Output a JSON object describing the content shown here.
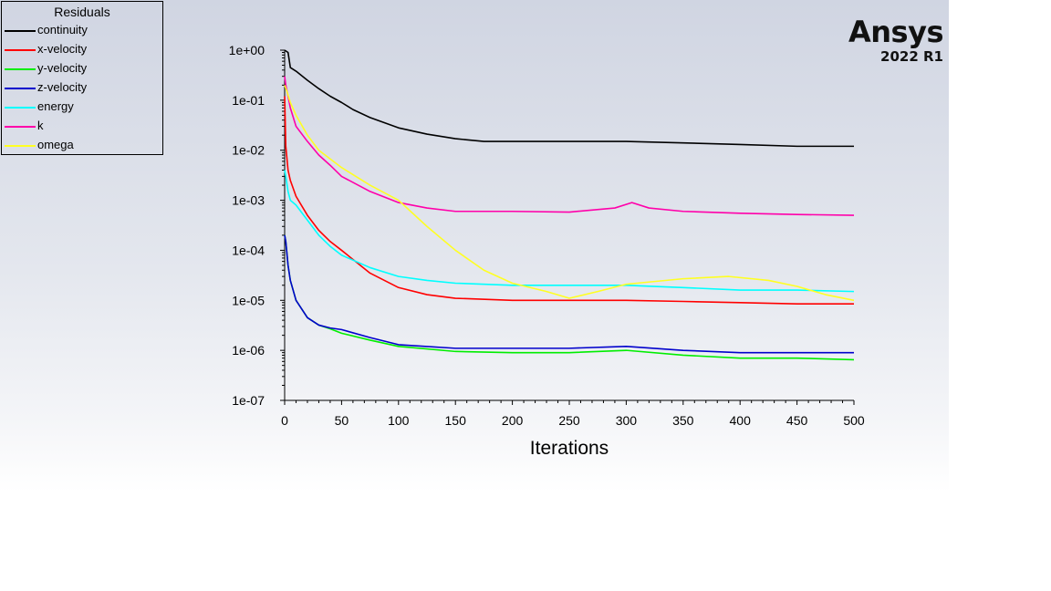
{
  "brand": {
    "name": "Ansys",
    "version": "2022 R1"
  },
  "chart_data": {
    "type": "line",
    "title": "Residuals",
    "xlabel": "Iterations",
    "ylabel": "",
    "xlim": [
      0,
      500
    ],
    "ylim": [
      1e-07,
      1
    ],
    "yscale": "log",
    "xticks": [
      0,
      50,
      100,
      150,
      200,
      250,
      300,
      350,
      400,
      450,
      500
    ],
    "xtick_labels": [
      "0",
      "50",
      "100",
      "150",
      "200",
      "250",
      "300",
      "350",
      "400",
      "450",
      "500"
    ],
    "yticks": [
      1e-07,
      1e-06,
      1e-05,
      0.0001,
      0.001,
      0.01,
      0.1,
      1
    ],
    "ytick_labels": [
      "1e-07",
      "1e-06",
      "1e-05",
      "1e-04",
      "1e-03",
      "1e-02",
      "1e-01",
      "1e+00"
    ],
    "legend_position": "top-left",
    "grid": false,
    "series": [
      {
        "name": "continuity",
        "color": "#000000",
        "x": [
          0,
          3,
          5,
          10,
          20,
          30,
          40,
          50,
          60,
          75,
          100,
          125,
          150,
          175,
          200,
          250,
          300,
          350,
          400,
          450,
          500
        ],
        "y": [
          1.0,
          0.9,
          0.45,
          0.38,
          0.25,
          0.17,
          0.12,
          0.09,
          0.065,
          0.045,
          0.028,
          0.021,
          0.017,
          0.015,
          0.015,
          0.015,
          0.015,
          0.014,
          0.013,
          0.012,
          0.012
        ]
      },
      {
        "name": "x-velocity",
        "color": "#ff0000",
        "x": [
          0,
          1,
          3,
          5,
          10,
          20,
          30,
          40,
          50,
          75,
          100,
          125,
          150,
          200,
          250,
          300,
          350,
          400,
          450,
          500
        ],
        "y": [
          0.12,
          0.012,
          0.004,
          0.0025,
          0.0012,
          0.0005,
          0.00025,
          0.00015,
          0.0001,
          3.5e-05,
          1.8e-05,
          1.3e-05,
          1.1e-05,
          1e-05,
          1e-05,
          1e-05,
          9.5e-06,
          9e-06,
          8.5e-06,
          8.5e-06
        ]
      },
      {
        "name": "y-velocity",
        "color": "#00ee00",
        "x": [
          0,
          1,
          3,
          5,
          10,
          20,
          30,
          40,
          50,
          75,
          100,
          150,
          200,
          250,
          300,
          350,
          400,
          450,
          500
        ],
        "y": [
          0.0002,
          0.00015,
          5e-05,
          2.5e-05,
          1e-05,
          4.5e-06,
          3.2e-06,
          2.7e-06,
          2.2e-06,
          1.6e-06,
          1.2e-06,
          9.5e-07,
          9e-07,
          9e-07,
          1e-06,
          8e-07,
          7e-07,
          7e-07,
          6.5e-07
        ]
      },
      {
        "name": "z-velocity",
        "color": "#0000cc",
        "x": [
          0,
          1,
          3,
          5,
          10,
          20,
          30,
          40,
          50,
          75,
          100,
          150,
          200,
          250,
          300,
          350,
          400,
          450,
          500
        ],
        "y": [
          0.0002,
          0.00015,
          5e-05,
          2.5e-05,
          1e-05,
          4.5e-06,
          3.2e-06,
          2.8e-06,
          2.6e-06,
          1.8e-06,
          1.3e-06,
          1.1e-06,
          1.1e-06,
          1.1e-06,
          1.2e-06,
          1e-06,
          9e-07,
          9e-07,
          9e-07
        ]
      },
      {
        "name": "energy",
        "color": "#00ffff",
        "x": [
          0,
          1,
          3,
          5,
          10,
          20,
          30,
          40,
          50,
          75,
          100,
          125,
          150,
          200,
          250,
          300,
          350,
          400,
          450,
          500
        ],
        "y": [
          0.004,
          0.003,
          0.0015,
          0.001,
          0.0008,
          0.0004,
          0.0002,
          0.00012,
          8e-05,
          4.5e-05,
          3e-05,
          2.5e-05,
          2.2e-05,
          2e-05,
          2e-05,
          2e-05,
          1.8e-05,
          1.6e-05,
          1.6e-05,
          1.5e-05
        ]
      },
      {
        "name": "k",
        "color": "#ff00aa",
        "x": [
          0,
          1,
          3,
          5,
          10,
          20,
          30,
          40,
          50,
          75,
          100,
          125,
          150,
          200,
          250,
          290,
          305,
          320,
          350,
          400,
          450,
          500
        ],
        "y": [
          0.3,
          0.2,
          0.12,
          0.07,
          0.03,
          0.015,
          0.008,
          0.005,
          0.003,
          0.0015,
          0.0009,
          0.0007,
          0.0006,
          0.0006,
          0.00058,
          0.0007,
          0.0009,
          0.0007,
          0.0006,
          0.00055,
          0.00052,
          0.0005
        ]
      },
      {
        "name": "omega",
        "color": "#ffff22",
        "x": [
          0,
          2,
          5,
          10,
          20,
          30,
          50,
          75,
          100,
          125,
          150,
          175,
          200,
          230,
          250,
          275,
          300,
          350,
          390,
          425,
          450,
          475,
          500
        ],
        "y": [
          0.2,
          0.15,
          0.09,
          0.05,
          0.02,
          0.01,
          0.0045,
          0.002,
          0.001,
          0.0003,
          0.0001,
          4e-05,
          2.2e-05,
          1.5e-05,
          1.1e-05,
          1.5e-05,
          2.1e-05,
          2.7e-05,
          3e-05,
          2.5e-05,
          1.9e-05,
          1.3e-05,
          1e-05
        ]
      }
    ]
  }
}
